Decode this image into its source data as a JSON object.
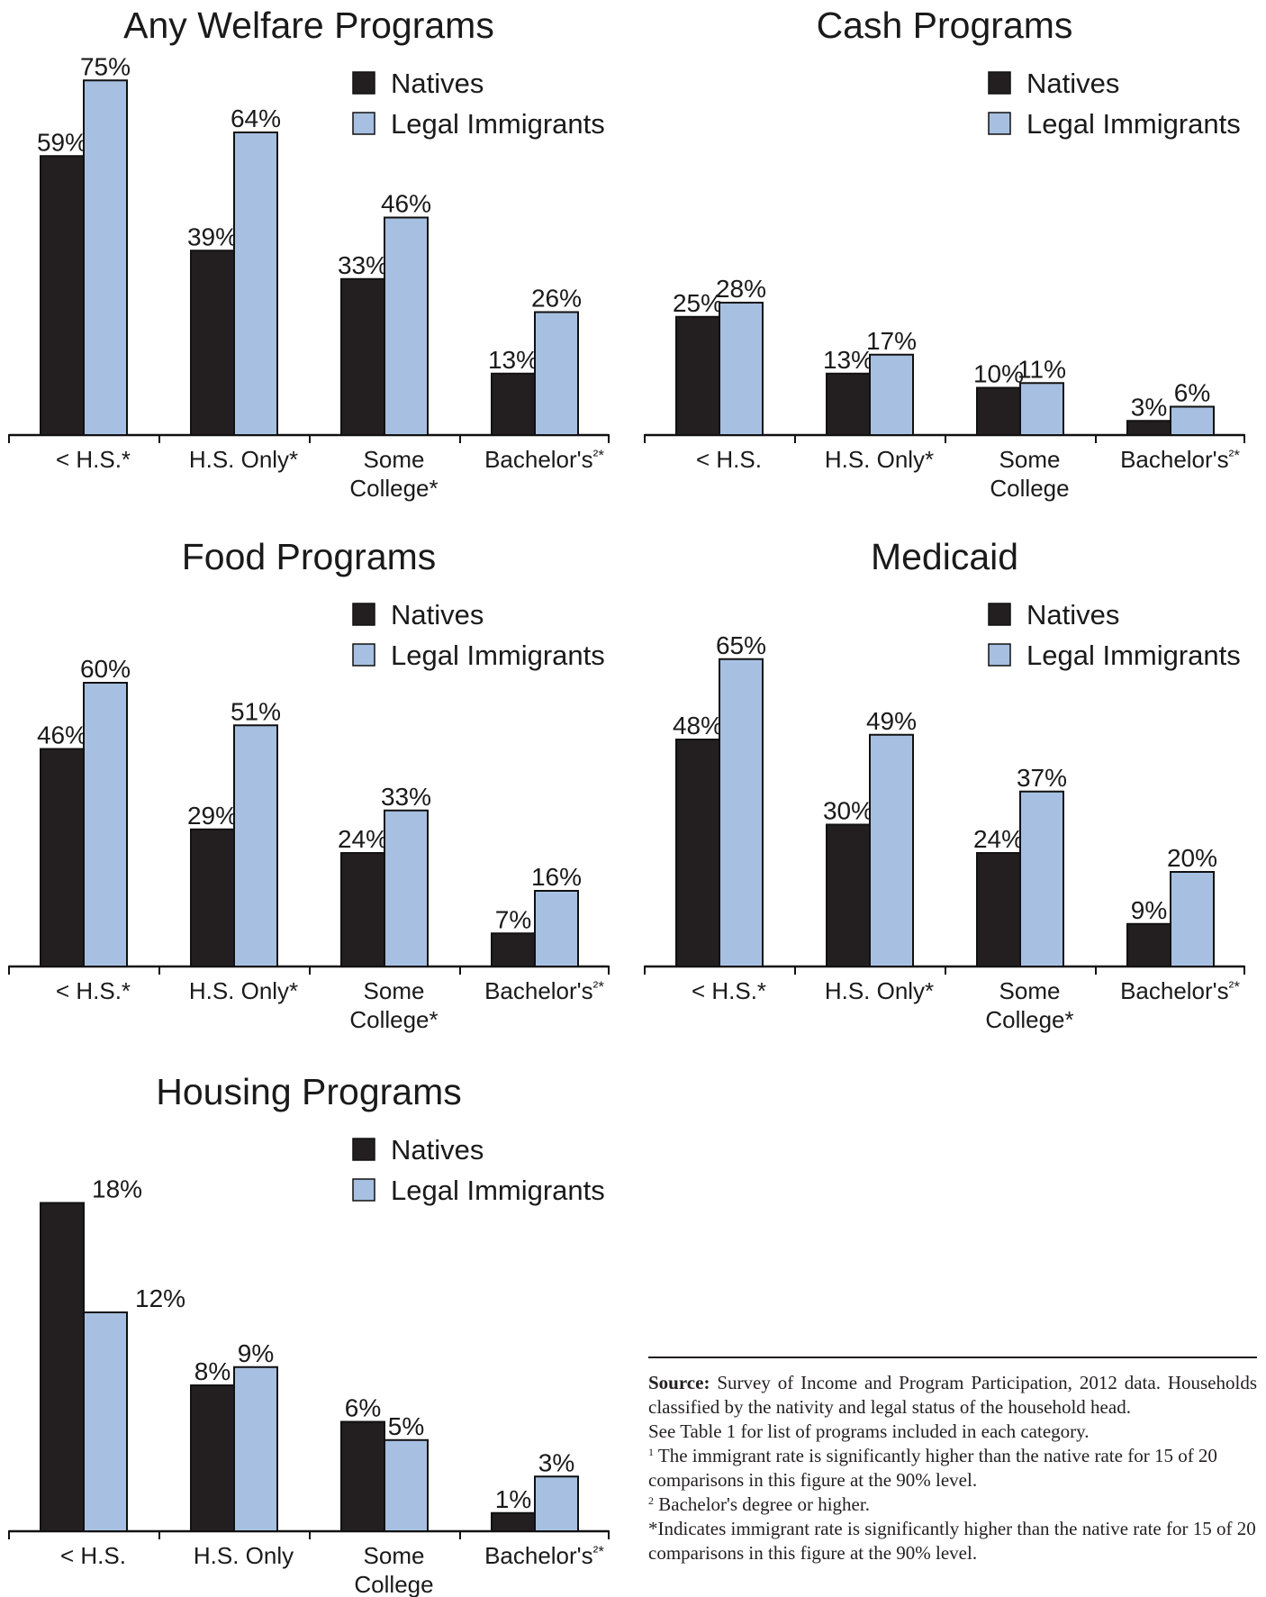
{
  "legend": {
    "natives": "Natives",
    "immigrants": "Legal Immigrants"
  },
  "colors": {
    "natives": "#231f20",
    "immigrants": "#a7c0e1",
    "stroke": "#111111"
  },
  "chart_data": [
    {
      "type": "bar",
      "title": "Any Welfare Programs",
      "categories": [
        "< H.S.*",
        "H.S. Only*",
        "Some College*",
        "Bachelor's²*"
      ],
      "series": [
        {
          "name": "Natives",
          "values": [
            59,
            39,
            33,
            13
          ]
        },
        {
          "name": "Legal Immigrants",
          "values": [
            75,
            64,
            46,
            26
          ]
        }
      ],
      "value_labels": [
        [
          "59%",
          "39%",
          "33%",
          "13%"
        ],
        [
          "75%",
          "64%",
          "46%",
          "26%"
        ]
      ],
      "ylim": [
        0,
        100
      ]
    },
    {
      "type": "bar",
      "title": "Cash Programs",
      "categories": [
        "< H.S.",
        "H.S. Only*",
        "Some College",
        "Bachelor's²*"
      ],
      "series": [
        {
          "name": "Natives",
          "values": [
            25,
            13,
            10,
            3
          ]
        },
        {
          "name": "Legal Immigrants",
          "values": [
            28,
            17,
            11,
            6
          ]
        }
      ],
      "value_labels": [
        [
          "25%",
          "13%",
          "10%",
          "3%"
        ],
        [
          "28%",
          "17%",
          "11%",
          "6%"
        ]
      ],
      "ylim": [
        0,
        100
      ]
    },
    {
      "type": "bar",
      "title": "Food Programs",
      "categories": [
        "< H.S.*",
        "H.S. Only*",
        "Some College*",
        "Bachelor's²*"
      ],
      "series": [
        {
          "name": "Natives",
          "values": [
            46,
            29,
            24,
            7
          ]
        },
        {
          "name": "Legal Immigrants",
          "values": [
            60,
            51,
            33,
            16
          ]
        }
      ],
      "value_labels": [
        [
          "46%",
          "29%",
          "24%",
          "7%"
        ],
        [
          "60%",
          "51%",
          "33%",
          "16%"
        ]
      ],
      "ylim": [
        0,
        100
      ]
    },
    {
      "type": "bar",
      "title": "Medicaid",
      "categories": [
        "< H.S.*",
        "H.S. Only*",
        "Some College*",
        "Bachelor's²*"
      ],
      "series": [
        {
          "name": "Natives",
          "values": [
            48,
            30,
            24,
            9
          ]
        },
        {
          "name": "Legal Immigrants",
          "values": [
            65,
            49,
            37,
            20
          ]
        }
      ],
      "value_labels": [
        [
          "48%",
          "30%",
          "24%",
          "9%"
        ],
        [
          "65%",
          "49%",
          "37%",
          "20%"
        ]
      ],
      "ylim": [
        0,
        100
      ]
    },
    {
      "type": "bar",
      "title": "Housing Programs",
      "categories": [
        "< H.S.",
        "H.S. Only",
        "Some College",
        "Bachelor's²*"
      ],
      "series": [
        {
          "name": "Natives",
          "values": [
            18,
            8,
            6,
            1
          ]
        },
        {
          "name": "Legal Immigrants",
          "values": [
            12,
            9,
            5,
            3
          ]
        }
      ],
      "value_labels": [
        [
          "18%",
          "8%",
          "6%",
          "1%"
        ],
        [
          "12%",
          "9%",
          "5%",
          "3%"
        ]
      ],
      "ylim": [
        0,
        25
      ]
    }
  ],
  "notes": {
    "source_label": "Source:",
    "source_text": "Survey of Income and Program Participation, 2012 data. Households classified by the nativity and legal status of the household head.",
    "table_note": "See Table 1 for list of programs included in each category.",
    "note1_mark": "1",
    "note1_text": "The immigrant rate is significantly higher than the native rate for 15 of 20 comparisons in this figure at the 90% level.",
    "note2_mark": "2",
    "note2_text": "Bachelor's degree or higher.",
    "star_note": "*Indicates immigrant rate is significantly higher than the native rate for 15 of 20 comparisons in this figure at the 90% level."
  }
}
